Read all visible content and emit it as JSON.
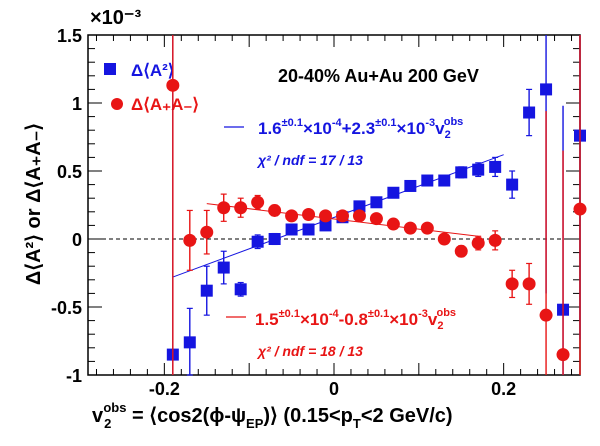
{
  "chart_data": {
    "type": "scatter",
    "title": "20-40% Au+Au 200 GeV",
    "xlabel": {
      "main": "v",
      "sub": "2",
      "sup": "obs",
      "rest": " = ⟨cos2(ϕ-ψ",
      "rest_sub": "EP",
      "tail": ")⟩ (0.15<p",
      "tail_sub": "T",
      "end": "<2 GeV/c)"
    },
    "ylabel": "Δ⟨A²⟩ or Δ⟨A₊A₋⟩",
    "y_multiplier": "×10⁻³",
    "xlim": [
      -0.29,
      0.29
    ],
    "ylim": [
      -1.0,
      1.5
    ],
    "x_ticks": [
      -0.2,
      0,
      0.2
    ],
    "x_tick_labels": [
      "-0.2",
      "0",
      "0.2"
    ],
    "y_ticks": [
      -1,
      -0.5,
      0,
      0.5,
      1,
      1.5
    ],
    "y_tick_labels": [
      "-1",
      "-0.5",
      "0",
      "0.5",
      "1",
      "1.5"
    ],
    "grid": false,
    "legend_position": "top-left",
    "series": [
      {
        "name": "Δ⟨A²⟩",
        "color": "#1515e0",
        "marker": "square",
        "points": [
          {
            "x": -0.19,
            "y": -0.85,
            "err": 2.5
          },
          {
            "x": -0.17,
            "y": -0.76,
            "err": 0.25
          },
          {
            "x": -0.15,
            "y": -0.38,
            "err": 0.18
          },
          {
            "x": -0.13,
            "y": -0.21,
            "err": 0.12
          },
          {
            "x": -0.11,
            "y": -0.37,
            "err": 0.05
          },
          {
            "x": -0.09,
            "y": -0.02,
            "err": 0.05
          },
          {
            "x": -0.07,
            "y": 0.0,
            "err": 0.04
          },
          {
            "x": -0.05,
            "y": 0.07,
            "err": 0.03
          },
          {
            "x": -0.03,
            "y": 0.07,
            "err": 0.03
          },
          {
            "x": -0.01,
            "y": 0.1,
            "err": 0.03
          },
          {
            "x": 0.01,
            "y": 0.16,
            "err": 0.03
          },
          {
            "x": 0.03,
            "y": 0.24,
            "err": 0.03
          },
          {
            "x": 0.05,
            "y": 0.27,
            "err": 0.03
          },
          {
            "x": 0.07,
            "y": 0.34,
            "err": 0.03
          },
          {
            "x": 0.09,
            "y": 0.39,
            "err": 0.03
          },
          {
            "x": 0.11,
            "y": 0.43,
            "err": 0.03
          },
          {
            "x": 0.13,
            "y": 0.43,
            "err": 0.03
          },
          {
            "x": 0.15,
            "y": 0.49,
            "err": 0.04
          },
          {
            "x": 0.17,
            "y": 0.51,
            "err": 0.05
          },
          {
            "x": 0.19,
            "y": 0.53,
            "err": 0.07
          },
          {
            "x": 0.21,
            "y": 0.4,
            "err": 0.1
          },
          {
            "x": 0.23,
            "y": 0.93,
            "err": 0.17
          },
          {
            "x": 0.25,
            "y": 1.1,
            "err": 1.5
          },
          {
            "x": 0.27,
            "y": -0.52,
            "err": 1.5
          },
          {
            "x": 0.29,
            "y": 0.76,
            "err": 1.5
          }
        ],
        "fit": {
          "x1": -0.19,
          "y1": -0.28,
          "x2": 0.2,
          "y2": 0.62
        },
        "fit_label": {
          "a": "1.6",
          "a_sup": "±0.1",
          "b": "×10",
          "b_sup": "-4",
          "c": "+2.3",
          "c_sup": "±0.1",
          "d": "×10",
          "d_sup": "-3",
          "e": "v",
          "e_sub": "2",
          "e_sup": "obs"
        },
        "chi2_label": "χ² / ndf = 17 / 13"
      },
      {
        "name": "Δ⟨A₊A₋⟩",
        "color": "#e81515",
        "marker": "circle",
        "points": [
          {
            "x": -0.19,
            "y": 1.13,
            "err": 2.5
          },
          {
            "x": -0.17,
            "y": -0.01,
            "err": 0.22
          },
          {
            "x": -0.15,
            "y": 0.05,
            "err": 0.16
          },
          {
            "x": -0.13,
            "y": 0.23,
            "err": 0.1
          },
          {
            "x": -0.11,
            "y": 0.23,
            "err": 0.07
          },
          {
            "x": -0.09,
            "y": 0.27,
            "err": 0.05
          },
          {
            "x": -0.07,
            "y": 0.21,
            "err": 0.04
          },
          {
            "x": -0.05,
            "y": 0.17,
            "err": 0.03
          },
          {
            "x": -0.03,
            "y": 0.18,
            "err": 0.03
          },
          {
            "x": -0.01,
            "y": 0.17,
            "err": 0.03
          },
          {
            "x": 0.01,
            "y": 0.17,
            "err": 0.03
          },
          {
            "x": 0.03,
            "y": 0.17,
            "err": 0.03
          },
          {
            "x": 0.05,
            "y": 0.15,
            "err": 0.03
          },
          {
            "x": 0.07,
            "y": 0.11,
            "err": 0.03
          },
          {
            "x": 0.09,
            "y": 0.08,
            "err": 0.03
          },
          {
            "x": 0.11,
            "y": 0.08,
            "err": 0.03
          },
          {
            "x": 0.13,
            "y": 0.0,
            "err": 0.03
          },
          {
            "x": 0.15,
            "y": -0.09,
            "err": 0.04
          },
          {
            "x": 0.17,
            "y": -0.03,
            "err": 0.05
          },
          {
            "x": 0.19,
            "y": -0.01,
            "err": 0.07
          },
          {
            "x": 0.21,
            "y": -0.33,
            "err": 0.1
          },
          {
            "x": 0.23,
            "y": -0.33,
            "err": 0.15
          },
          {
            "x": 0.25,
            "y": -0.56,
            "err": 1.5
          },
          {
            "x": 0.27,
            "y": -0.85,
            "err": 1.5
          },
          {
            "x": 0.29,
            "y": 0.22,
            "err": 1.5
          }
        ],
        "fit": {
          "x1": -0.15,
          "y1": 0.26,
          "x2": 0.17,
          "y2": 0.02
        },
        "fit_label": {
          "a": "1.5",
          "a_sup": "±0.1",
          "b": "×10",
          "b_sup": "-4",
          "c": "-0.8",
          "c_sup": "±0.1",
          "d": "×10",
          "d_sup": "-3",
          "e": "v",
          "e_sub": "2",
          "e_sup": "obs"
        },
        "chi2_label": "χ² / ndf = 18 / 13"
      }
    ]
  }
}
